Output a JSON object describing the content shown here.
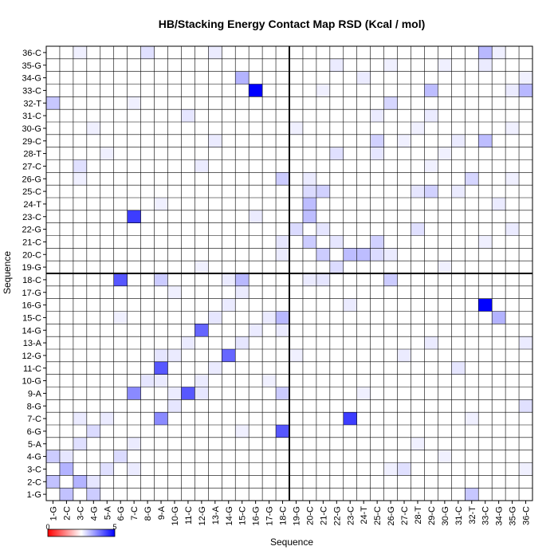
{
  "chart_data": {
    "type": "heatmap",
    "title": "HB/Stacking Energy Contact Map RSD (Kcal / mol)",
    "xlabel": "Sequence",
    "ylabel": "Sequence",
    "labels": [
      "1-G",
      "2-C",
      "3-C",
      "4-G",
      "5-A",
      "6-G",
      "7-C",
      "8-G",
      "9-A",
      "10-G",
      "11-C",
      "12-G",
      "13-A",
      "14-G",
      "15-C",
      "16-G",
      "17-G",
      "18-C",
      "19-G",
      "20-C",
      "21-C",
      "22-G",
      "23-C",
      "24-T",
      "25-C",
      "26-G",
      "27-C",
      "28-T",
      "29-C",
      "30-G",
      "31-C",
      "32-T",
      "33-C",
      "34-G",
      "35-G",
      "36-C"
    ],
    "colorbar": {
      "min": 0,
      "max": 5,
      "min_label": "0",
      "max_label": "5",
      "colors": [
        "#ff0000",
        "#ffffff",
        "#0000ff"
      ]
    },
    "grid": true,
    "divider_after_index": 18,
    "cells": [
      {
        "row": 33,
        "col": 16,
        "value": 5.0
      },
      {
        "row": 16,
        "col": 33,
        "value": 5.0
      },
      {
        "row": 23,
        "col": 7,
        "value": 3.8
      },
      {
        "row": 7,
        "col": 23,
        "value": 3.8
      },
      {
        "row": 18,
        "col": 6,
        "value": 3.3
      },
      {
        "row": 6,
        "col": 18,
        "value": 3.3
      },
      {
        "row": 11,
        "col": 9,
        "value": 3.3
      },
      {
        "row": 9,
        "col": 11,
        "value": 3.3
      },
      {
        "row": 12,
        "col": 14,
        "value": 3.0
      },
      {
        "row": 14,
        "col": 12,
        "value": 3.0
      },
      {
        "row": 9,
        "col": 7,
        "value": 2.3
      },
      {
        "row": 7,
        "col": 9,
        "value": 2.3
      },
      {
        "row": 3,
        "col": 2,
        "value": 1.5
      },
      {
        "row": 2,
        "col": 3,
        "value": 1.5
      },
      {
        "row": 2,
        "col": 1,
        "value": 1.2
      },
      {
        "row": 1,
        "col": 2,
        "value": 1.2
      },
      {
        "row": 4,
        "col": 1,
        "value": 1.0
      },
      {
        "row": 1,
        "col": 4,
        "value": 1.0
      },
      {
        "row": 32,
        "col": 1,
        "value": 1.1
      },
      {
        "row": 1,
        "col": 32,
        "value": 1.1
      },
      {
        "row": 15,
        "col": 34,
        "value": 1.5
      },
      {
        "row": 34,
        "col": 15,
        "value": 1.5
      },
      {
        "row": 18,
        "col": 15,
        "value": 1.4
      },
      {
        "row": 15,
        "col": 18,
        "value": 1.4
      },
      {
        "row": 36,
        "col": 33,
        "value": 1.4
      },
      {
        "row": 33,
        "col": 36,
        "value": 1.4
      },
      {
        "row": 29,
        "col": 33,
        "value": 1.3
      },
      {
        "row": 33,
        "col": 29,
        "value": 1.3
      },
      {
        "row": 20,
        "col": 24,
        "value": 1.3
      },
      {
        "row": 24,
        "col": 20,
        "value": 1.3
      },
      {
        "row": 23,
        "col": 20,
        "value": 1.3
      },
      {
        "row": 20,
        "col": 23,
        "value": 1.3
      },
      {
        "row": 18,
        "col": 26,
        "value": 1.0
      },
      {
        "row": 26,
        "col": 18,
        "value": 1.0
      },
      {
        "row": 9,
        "col": 18,
        "value": 1.0
      },
      {
        "row": 18,
        "col": 9,
        "value": 1.0
      },
      {
        "row": 20,
        "col": 21,
        "value": 1.0
      },
      {
        "row": 21,
        "col": 20,
        "value": 1.0
      },
      {
        "row": 25,
        "col": 21,
        "value": 0.9
      },
      {
        "row": 21,
        "col": 25,
        "value": 0.9
      },
      {
        "row": 29,
        "col": 25,
        "value": 0.9
      },
      {
        "row": 25,
        "col": 29,
        "value": 0.9
      },
      {
        "row": 33,
        "col": 29,
        "value": 0.8
      },
      {
        "row": 29,
        "col": 33,
        "value": 0.8
      },
      {
        "row": 32,
        "col": 26,
        "value": 0.8
      },
      {
        "row": 26,
        "col": 32,
        "value": 0.8
      },
      {
        "row": 26,
        "col": 18,
        "value": 0.9
      },
      {
        "row": 27,
        "col": 3,
        "value": 0.6
      },
      {
        "row": 3,
        "col": 27,
        "value": 0.6
      },
      {
        "row": 36,
        "col": 8,
        "value": 0.6
      },
      {
        "row": 8,
        "col": 36,
        "value": 0.6
      },
      {
        "row": 36,
        "col": 13,
        "value": 0.4
      },
      {
        "row": 13,
        "col": 36,
        "value": 0.4
      },
      {
        "row": 36,
        "col": 3,
        "value": 0.3
      },
      {
        "row": 3,
        "col": 36,
        "value": 0.3
      },
      {
        "row": 35,
        "col": 22,
        "value": 0.4
      },
      {
        "row": 22,
        "col": 35,
        "value": 0.4
      },
      {
        "row": 28,
        "col": 22,
        "value": 0.6
      },
      {
        "row": 22,
        "col": 28,
        "value": 0.6
      },
      {
        "row": 31,
        "col": 11,
        "value": 0.5
      },
      {
        "row": 11,
        "col": 31,
        "value": 0.5
      },
      {
        "row": 24,
        "col": 34,
        "value": 0.4
      },
      {
        "row": 34,
        "col": 24,
        "value": 0.4
      },
      {
        "row": 25,
        "col": 31,
        "value": 0.4
      },
      {
        "row": 31,
        "col": 25,
        "value": 0.4
      },
      {
        "row": 27,
        "col": 12,
        "value": 0.4
      },
      {
        "row": 12,
        "col": 27,
        "value": 0.4
      },
      {
        "row": 29,
        "col": 13,
        "value": 0.4
      },
      {
        "row": 13,
        "col": 29,
        "value": 0.4
      },
      {
        "row": 19,
        "col": 22,
        "value": 0.7
      },
      {
        "row": 22,
        "col": 19,
        "value": 0.7
      },
      {
        "row": 21,
        "col": 22,
        "value": 0.5
      },
      {
        "row": 22,
        "col": 21,
        "value": 0.5
      },
      {
        "row": 20,
        "col": 25,
        "value": 0.7
      },
      {
        "row": 25,
        "col": 20,
        "value": 0.7
      },
      {
        "row": 22,
        "col": 28,
        "value": 0.5
      },
      {
        "row": 20,
        "col": 26,
        "value": 0.4
      },
      {
        "row": 26,
        "col": 20,
        "value": 0.4
      },
      {
        "row": 25,
        "col": 28,
        "value": 0.5
      },
      {
        "row": 28,
        "col": 25,
        "value": 0.5
      },
      {
        "row": 21,
        "col": 18,
        "value": 0.5
      },
      {
        "row": 18,
        "col": 21,
        "value": 0.5
      },
      {
        "row": 20,
        "col": 18,
        "value": 0.4
      },
      {
        "row": 18,
        "col": 20,
        "value": 0.4
      },
      {
        "row": 8,
        "col": 10,
        "value": 0.5
      },
      {
        "row": 10,
        "col": 8,
        "value": 0.5
      },
      {
        "row": 6,
        "col": 4,
        "value": 0.7
      },
      {
        "row": 4,
        "col": 6,
        "value": 0.7
      },
      {
        "row": 5,
        "col": 3,
        "value": 0.6
      },
      {
        "row": 3,
        "col": 5,
        "value": 0.6
      },
      {
        "row": 4,
        "col": 2,
        "value": 0.5
      },
      {
        "row": 2,
        "col": 4,
        "value": 0.5
      },
      {
        "row": 13,
        "col": 15,
        "value": 0.5
      },
      {
        "row": 15,
        "col": 13,
        "value": 0.5
      },
      {
        "row": 14,
        "col": 16,
        "value": 0.4
      },
      {
        "row": 16,
        "col": 14,
        "value": 0.4
      },
      {
        "row": 15,
        "col": 17,
        "value": 0.4
      },
      {
        "row": 17,
        "col": 15,
        "value": 0.4
      },
      {
        "row": 10,
        "col": 12,
        "value": 0.4
      },
      {
        "row": 12,
        "col": 10,
        "value": 0.4
      },
      {
        "row": 5,
        "col": 7,
        "value": 0.4
      },
      {
        "row": 7,
        "col": 5,
        "value": 0.4
      },
      {
        "row": 11,
        "col": 13,
        "value": 0.4
      },
      {
        "row": 13,
        "col": 11,
        "value": 0.4
      },
      {
        "row": 12,
        "col": 9,
        "value": 0.5
      },
      {
        "row": 9,
        "col": 12,
        "value": 0.5
      },
      {
        "row": 9,
        "col": 10,
        "value": 0.4
      },
      {
        "row": 10,
        "col": 9,
        "value": 0.4
      },
      {
        "row": 7,
        "col": 3,
        "value": 0.4
      },
      {
        "row": 3,
        "col": 7,
        "value": 0.4
      },
      {
        "row": 18,
        "col": 14,
        "value": 0.4
      },
      {
        "row": 14,
        "col": 18,
        "value": 0.4
      },
      {
        "row": 16,
        "col": 23,
        "value": 0.4
      },
      {
        "row": 23,
        "col": 16,
        "value": 0.4
      },
      {
        "row": 32,
        "col": 7,
        "value": 0.3
      },
      {
        "row": 7,
        "col": 32,
        "value": 0.3
      },
      {
        "row": 31,
        "col": 29,
        "value": 0.4
      },
      {
        "row": 29,
        "col": 31,
        "value": 0.4
      },
      {
        "row": 33,
        "col": 35,
        "value": 0.4
      },
      {
        "row": 35,
        "col": 33,
        "value": 0.4
      },
      {
        "row": 27,
        "col": 29,
        "value": 0.3
      },
      {
        "row": 29,
        "col": 27,
        "value": 0.3
      },
      {
        "row": 30,
        "col": 28,
        "value": 0.3
      },
      {
        "row": 28,
        "col": 30,
        "value": 0.3
      },
      {
        "row": 34,
        "col": 36,
        "value": 0.3
      },
      {
        "row": 36,
        "col": 34,
        "value": 0.3
      },
      {
        "row": 17,
        "col": 10,
        "value": 0.3
      },
      {
        "row": 10,
        "col": 17,
        "value": 0.3
      },
      {
        "row": 15,
        "col": 6,
        "value": 0.3
      },
      {
        "row": 6,
        "col": 15,
        "value": 0.3
      },
      {
        "row": 19,
        "col": 12,
        "value": 0.3
      },
      {
        "row": 12,
        "col": 19,
        "value": 0.3
      },
      {
        "row": 24,
        "col": 9,
        "value": 0.3
      },
      {
        "row": 9,
        "col": 24,
        "value": 0.3
      },
      {
        "row": 26,
        "col": 3,
        "value": 0.3
      },
      {
        "row": 3,
        "col": 26,
        "value": 0.3
      },
      {
        "row": 30,
        "col": 4,
        "value": 0.3
      },
      {
        "row": 4,
        "col": 30,
        "value": 0.3
      },
      {
        "row": 28,
        "col": 5,
        "value": 0.3
      },
      {
        "row": 5,
        "col": 28,
        "value": 0.3
      },
      {
        "row": 35,
        "col": 30,
        "value": 0.3
      },
      {
        "row": 30,
        "col": 35,
        "value": 0.3
      },
      {
        "row": 26,
        "col": 35,
        "value": 0.3
      },
      {
        "row": 35,
        "col": 26,
        "value": 0.3
      },
      {
        "row": 21,
        "col": 33,
        "value": 0.3
      },
      {
        "row": 33,
        "col": 21,
        "value": 0.3
      },
      {
        "row": 19,
        "col": 30,
        "value": 0.3
      },
      {
        "row": 30,
        "col": 19,
        "value": 0.3
      }
    ]
  }
}
